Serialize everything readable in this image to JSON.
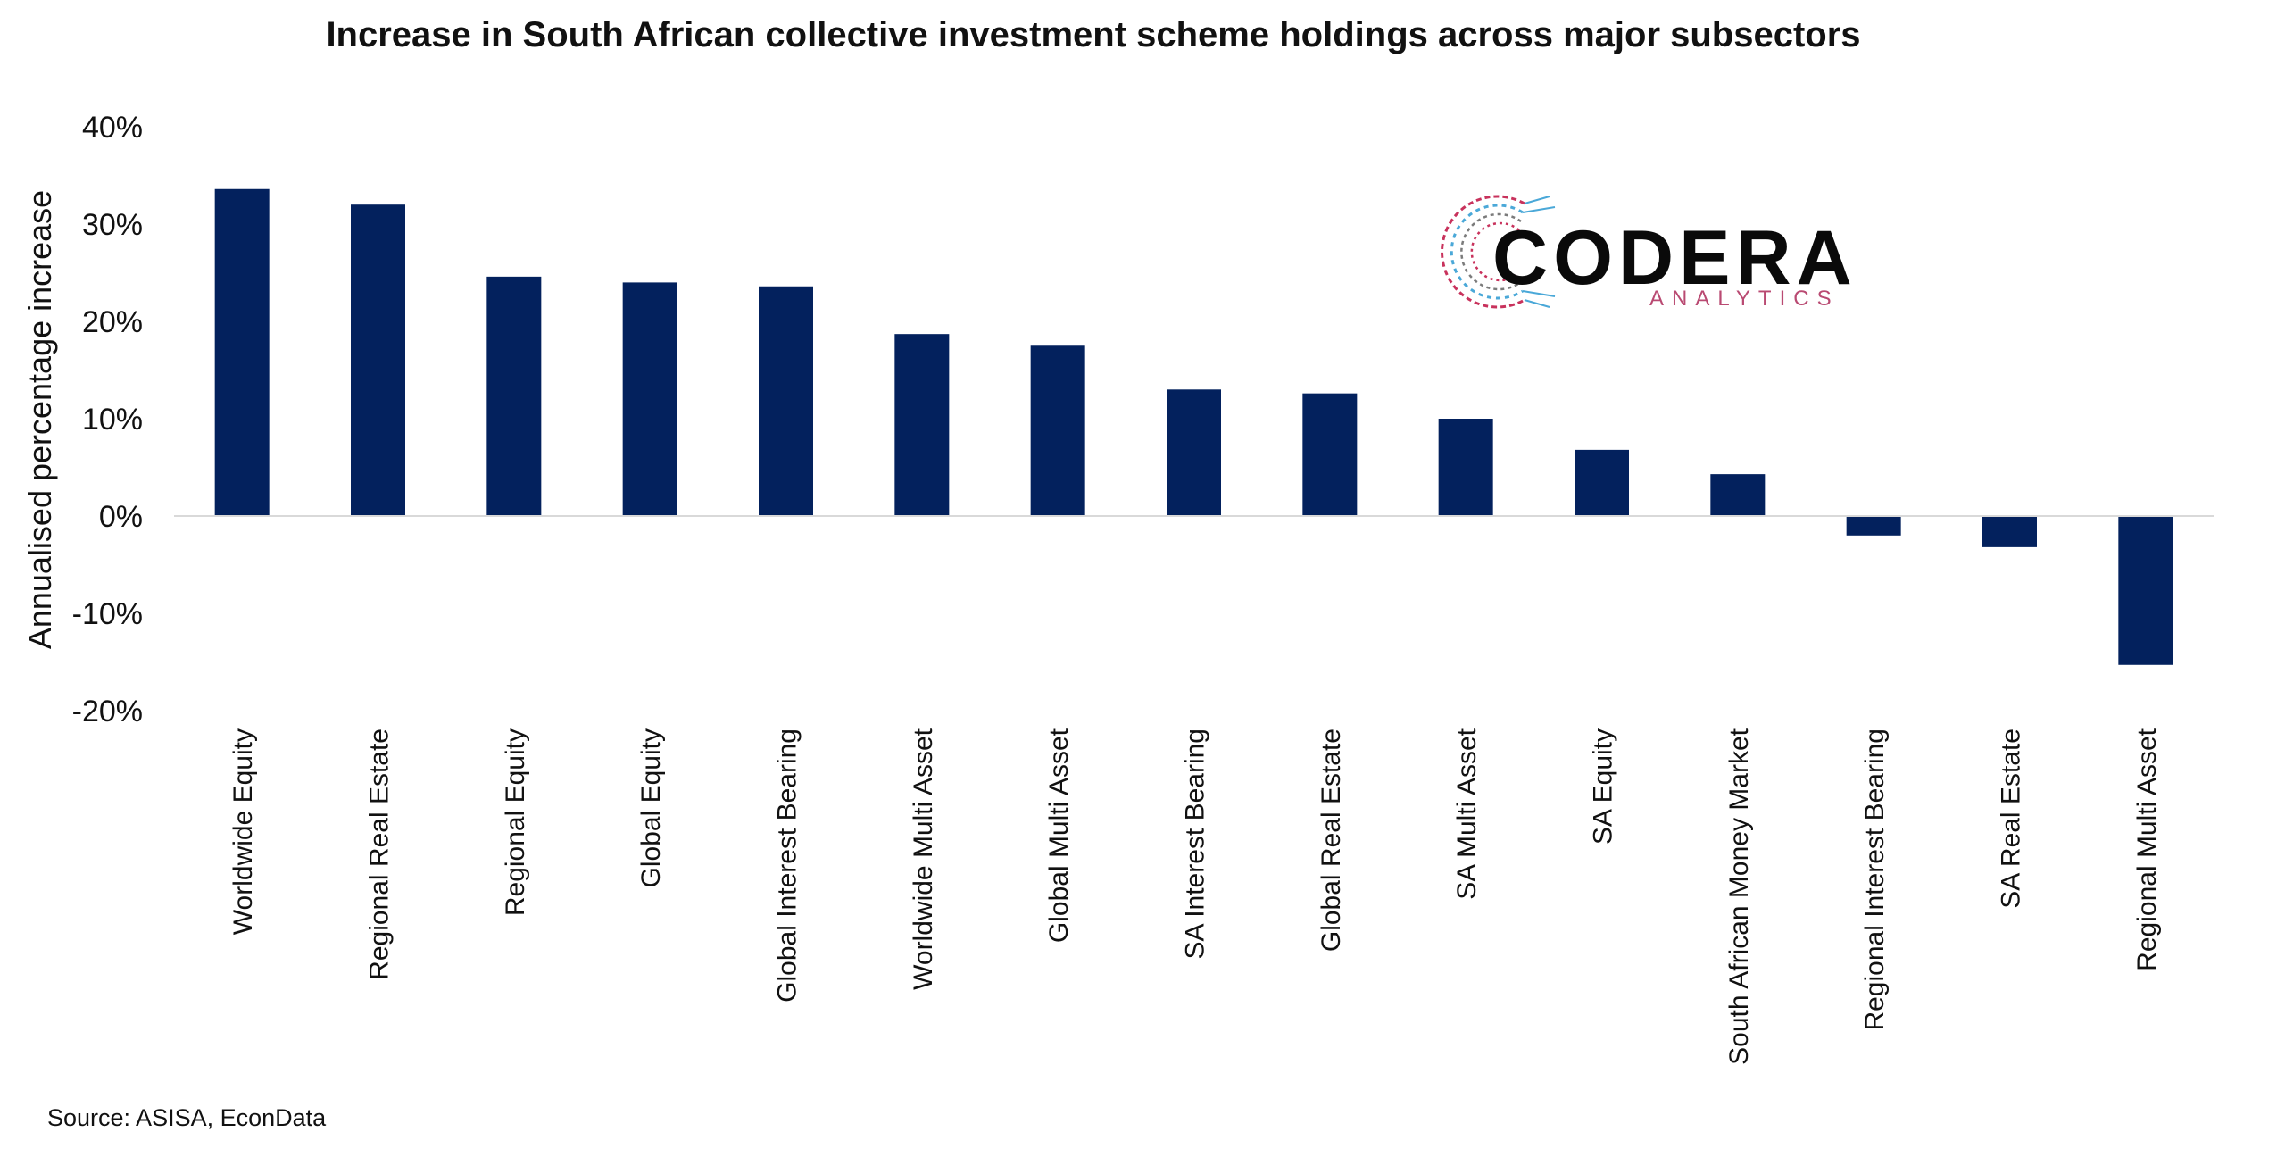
{
  "chart_data": {
    "type": "bar",
    "title": "Increase in South African collective investment scheme holdings across major subsectors",
    "ylabel": "Annualised percentage increase",
    "xlabel": "",
    "ylim": [
      -20,
      40
    ],
    "y_ticks": [
      40,
      30,
      20,
      10,
      0,
      -10,
      -20
    ],
    "y_tick_labels": [
      "40%",
      "30%",
      "20%",
      "10%",
      "0%",
      "-10%",
      "-20%"
    ],
    "categories": [
      "Worldwide Equity",
      "Regional Real Estate",
      "Regional Equity",
      "Global Equity",
      "Global Interest Bearing",
      "Worldwide Multi Asset",
      "Global Multi Asset",
      "SA Interest Bearing",
      "Global Real Estate",
      "SA Multi Asset",
      "SA Equity",
      "South African Money Market",
      "Regional Interest Bearing",
      "SA Real Estate",
      "Regional Multi Asset"
    ],
    "values": [
      33.6,
      32.0,
      24.6,
      24.0,
      23.6,
      18.7,
      17.5,
      13.0,
      12.6,
      10.0,
      6.8,
      4.3,
      -2.0,
      -3.2,
      -15.3
    ],
    "grid": false,
    "legend": "none",
    "bar_color": "#03215d",
    "zero_line_color": "#d9d9d9"
  },
  "source": "Source: ASISA, EconData",
  "logo": {
    "name": "CODERA",
    "tagline": "ANALYTICS",
    "tagline_color": "#b94a72",
    "accent_colors": [
      "#c8325c",
      "#4aa8d8",
      "#7b7b7b"
    ]
  }
}
